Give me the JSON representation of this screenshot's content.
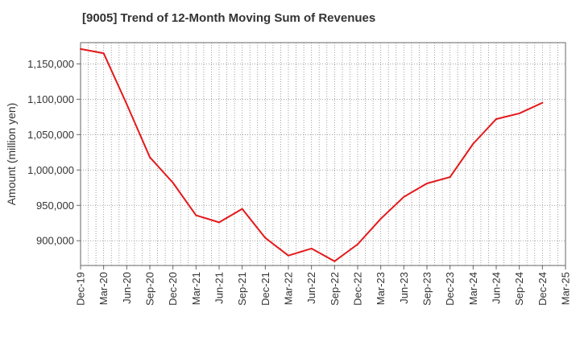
{
  "chart_data": {
    "type": "line",
    "title": "[9005]  Trend of 12-Month Moving Sum of Revenues",
    "xlabel": "",
    "ylabel": "Amount (million yen)",
    "x_tick_labels": [
      "Dec-19",
      "Mar-20",
      "Jun-20",
      "Sep-20",
      "Dec-20",
      "Mar-21",
      "Jun-21",
      "Sep-21",
      "Dec-21",
      "Mar-22",
      "Jun-22",
      "Sep-22",
      "Dec-22",
      "Mar-23",
      "Jun-23",
      "Sep-23",
      "Dec-23",
      "Mar-24",
      "Jun-24",
      "Sep-24",
      "Dec-24",
      "Mar-25"
    ],
    "y_ticks": [
      900000,
      950000,
      1000000,
      1050000,
      1100000,
      1150000
    ],
    "y_tick_labels": [
      "900,000",
      "950,000",
      "1,000,000",
      "1,050,000",
      "1,100,000",
      "1,150,000"
    ],
    "ylim": [
      865000,
      1180000
    ],
    "grid": true,
    "series": [
      {
        "color": "#e31a1c",
        "x": [
          "Dec-19",
          "Mar-20",
          "Jun-20",
          "Sep-20",
          "Dec-20",
          "Mar-21",
          "Jun-21",
          "Sep-21",
          "Dec-21",
          "Mar-22",
          "Jun-22",
          "Sep-22",
          "Dec-22",
          "Mar-23",
          "Jun-23",
          "Sep-23",
          "Dec-23",
          "Mar-24",
          "Jun-24",
          "Sep-24",
          "Dec-24"
        ],
        "values": [
          1171000,
          1165000,
          1093000,
          1018000,
          982000,
          936000,
          926000,
          945000,
          904000,
          879000,
          889000,
          871000,
          895000,
          931000,
          962000,
          981000,
          990000,
          1037000,
          1072000,
          1080000,
          1095000
        ]
      }
    ]
  }
}
